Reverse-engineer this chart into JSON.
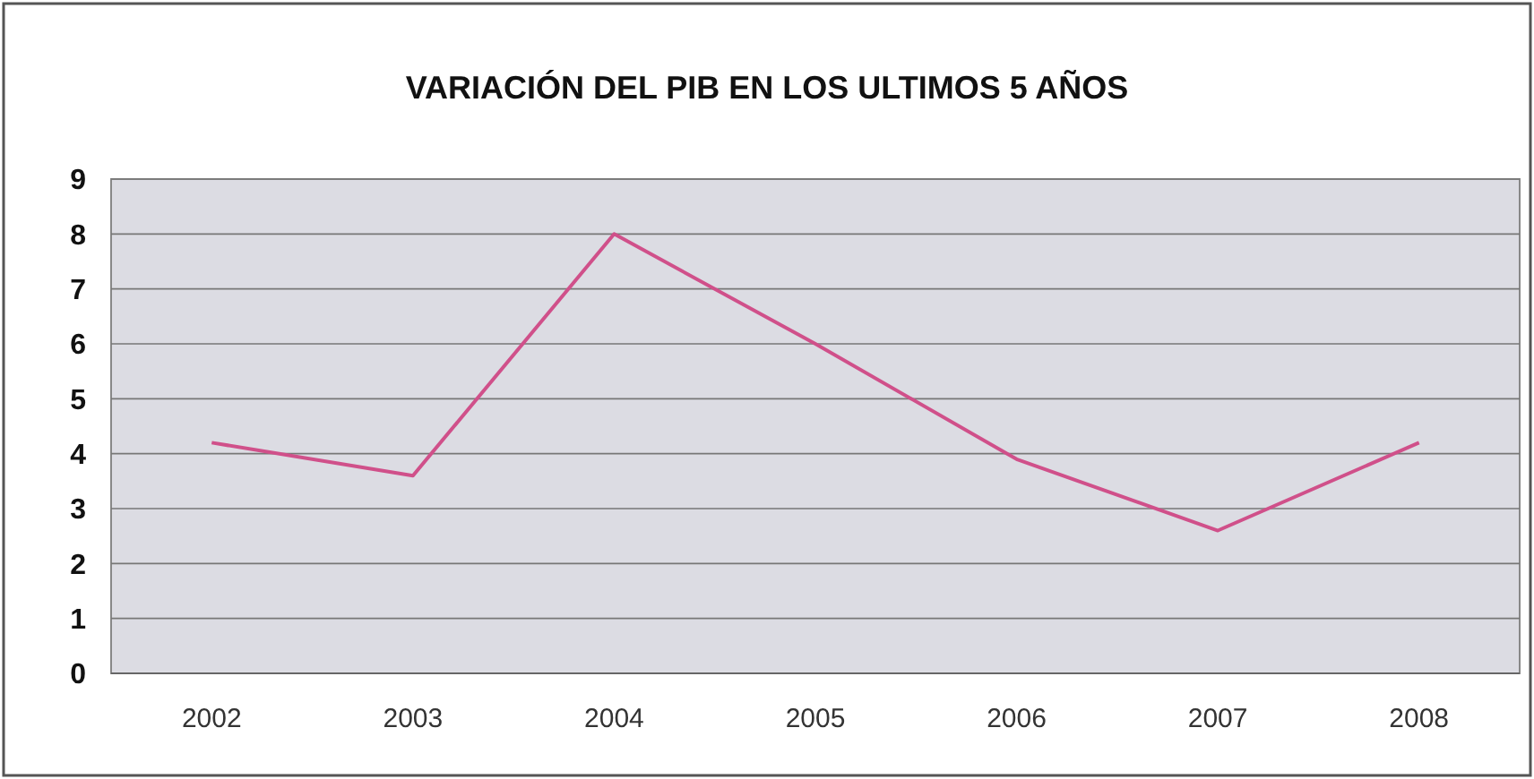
{
  "chart_data": {
    "type": "line",
    "title": "VARIACIÓN DEL PIB EN LOS ULTIMOS 5 AÑOS",
    "categories": [
      "2002",
      "2003",
      "2004",
      "2005",
      "2006",
      "2007",
      "2008"
    ],
    "series": [
      {
        "color": "#d0508a",
        "values": [
          4.2,
          3.6,
          8.0,
          6.0,
          3.9,
          2.6,
          4.2
        ]
      }
    ],
    "ylim": [
      0,
      9
    ],
    "yticks": [
      0,
      1,
      2,
      3,
      4,
      5,
      6,
      7,
      8,
      9
    ],
    "grid": "y",
    "marker": "none",
    "line_style": "solid"
  }
}
